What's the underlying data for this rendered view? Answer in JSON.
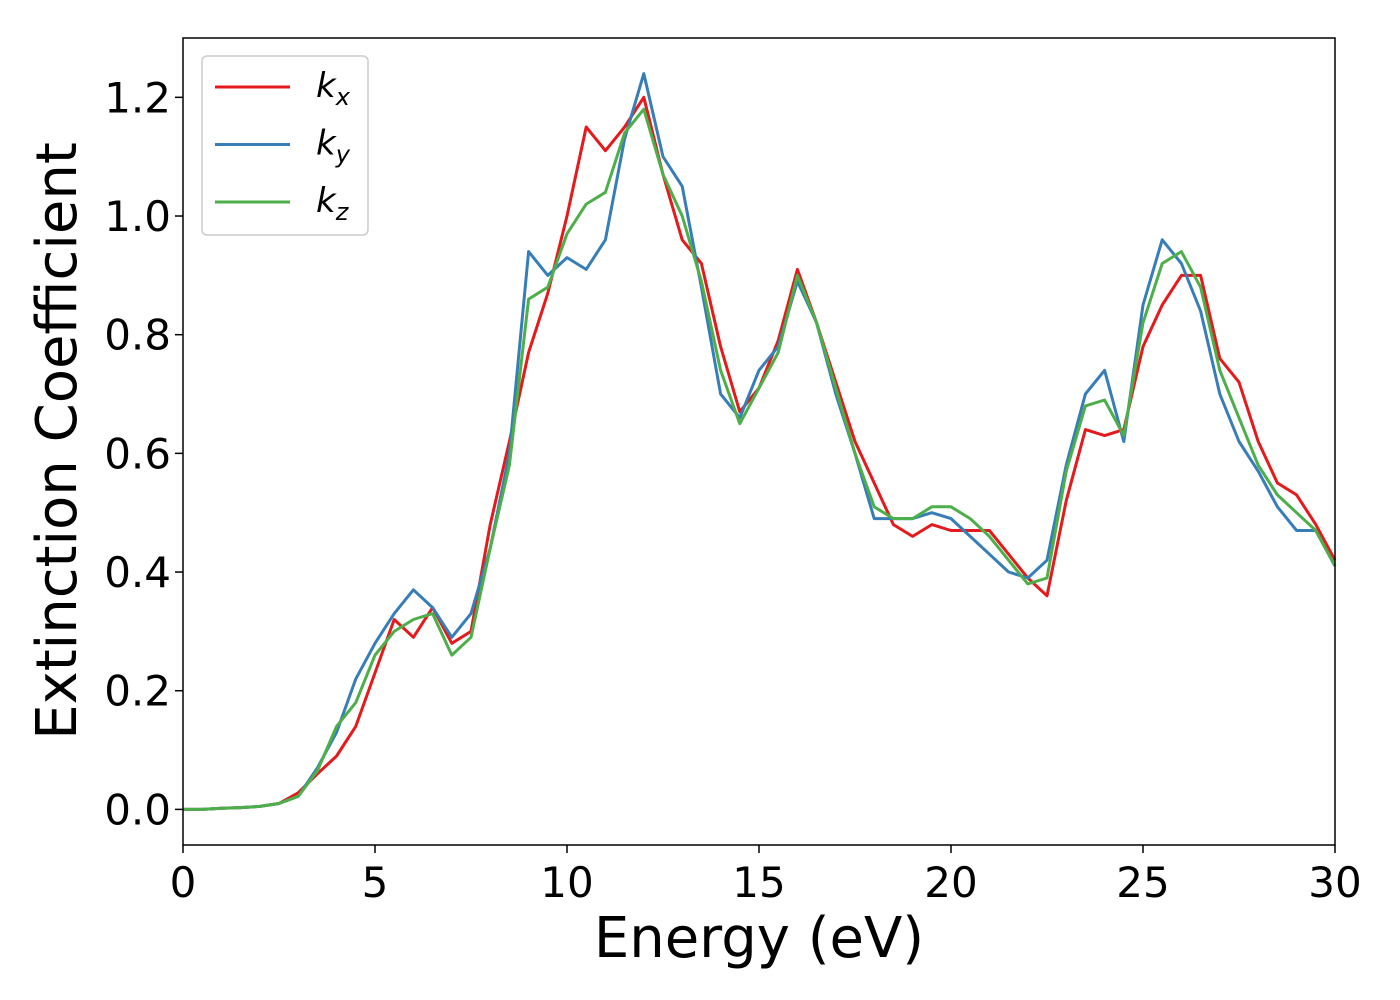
{
  "chart_data": {
    "type": "line",
    "xlabel": "Energy (eV)",
    "ylabel": "Extinction Coefficient",
    "x": [
      0,
      0.5,
      1,
      1.5,
      2,
      2.5,
      3,
      3.5,
      4,
      4.5,
      5,
      5.5,
      6,
      6.5,
      7,
      7.5,
      8,
      8.5,
      9,
      9.5,
      10,
      10.5,
      11,
      11.5,
      12,
      12.5,
      13,
      13.5,
      14,
      14.5,
      15,
      15.5,
      16,
      16.5,
      17,
      17.5,
      18,
      18.5,
      19,
      19.5,
      20,
      20.5,
      21,
      21.5,
      22,
      22.5,
      23,
      23.5,
      24,
      24.5,
      25,
      25.5,
      26,
      26.5,
      27,
      27.5,
      28,
      28.5,
      29,
      29.5,
      30
    ],
    "series": [
      {
        "name": "kx",
        "color": "#e41a1c",
        "values": [
          0,
          0,
          0.002,
          0.003,
          0.005,
          0.01,
          0.028,
          0.06,
          0.09,
          0.14,
          0.23,
          0.32,
          0.29,
          0.34,
          0.28,
          0.3,
          0.48,
          0.62,
          0.77,
          0.87,
          1.0,
          1.15,
          1.11,
          1.15,
          1.2,
          1.07,
          0.96,
          0.92,
          0.78,
          0.67,
          0.71,
          0.79,
          0.91,
          0.82,
          0.72,
          0.62,
          0.55,
          0.48,
          0.46,
          0.48,
          0.47,
          0.47,
          0.47,
          0.43,
          0.39,
          0.36,
          0.52,
          0.64,
          0.63,
          0.64,
          0.78,
          0.85,
          0.9,
          0.9,
          0.76,
          0.72,
          0.62,
          0.55,
          0.53,
          0.48,
          0.42
        ]
      },
      {
        "name": "ky",
        "color": "#377eb8",
        "values": [
          0,
          0,
          0.002,
          0.003,
          0.005,
          0.01,
          0.022,
          0.07,
          0.13,
          0.22,
          0.28,
          0.33,
          0.37,
          0.34,
          0.29,
          0.33,
          0.44,
          0.6,
          0.94,
          0.9,
          0.93,
          0.91,
          0.96,
          1.13,
          1.24,
          1.1,
          1.05,
          0.88,
          0.7,
          0.66,
          0.74,
          0.78,
          0.89,
          0.82,
          0.7,
          0.6,
          0.49,
          0.49,
          0.49,
          0.5,
          0.49,
          0.46,
          0.43,
          0.4,
          0.39,
          0.42,
          0.58,
          0.7,
          0.74,
          0.62,
          0.85,
          0.96,
          0.92,
          0.84,
          0.7,
          0.62,
          0.57,
          0.51,
          0.47,
          0.47,
          0.41
        ]
      },
      {
        "name": "kz",
        "color": "#4daf4a",
        "values": [
          0,
          0,
          0.002,
          0.003,
          0.005,
          0.01,
          0.022,
          0.065,
          0.14,
          0.18,
          0.26,
          0.3,
          0.32,
          0.33,
          0.26,
          0.29,
          0.44,
          0.58,
          0.86,
          0.88,
          0.97,
          1.02,
          1.04,
          1.14,
          1.18,
          1.07,
          1.0,
          0.89,
          0.74,
          0.65,
          0.71,
          0.77,
          0.9,
          0.82,
          0.71,
          0.6,
          0.51,
          0.49,
          0.49,
          0.51,
          0.51,
          0.49,
          0.46,
          0.42,
          0.38,
          0.39,
          0.57,
          0.68,
          0.69,
          0.63,
          0.82,
          0.92,
          0.94,
          0.88,
          0.74,
          0.66,
          0.58,
          0.53,
          0.5,
          0.47,
          0.41
        ]
      }
    ],
    "xlim": [
      0,
      30
    ],
    "xticks": [
      0,
      5,
      10,
      15,
      20,
      25,
      30
    ],
    "ylim": [
      -0.06,
      1.3
    ],
    "yticks": [
      {
        "value": 0,
        "label": "0.0"
      },
      0.2,
      0.4,
      0.6,
      0.8,
      {
        "value": 1,
        "label": "1.0"
      },
      1.2
    ],
    "legend": "upper left",
    "grid": false
  }
}
